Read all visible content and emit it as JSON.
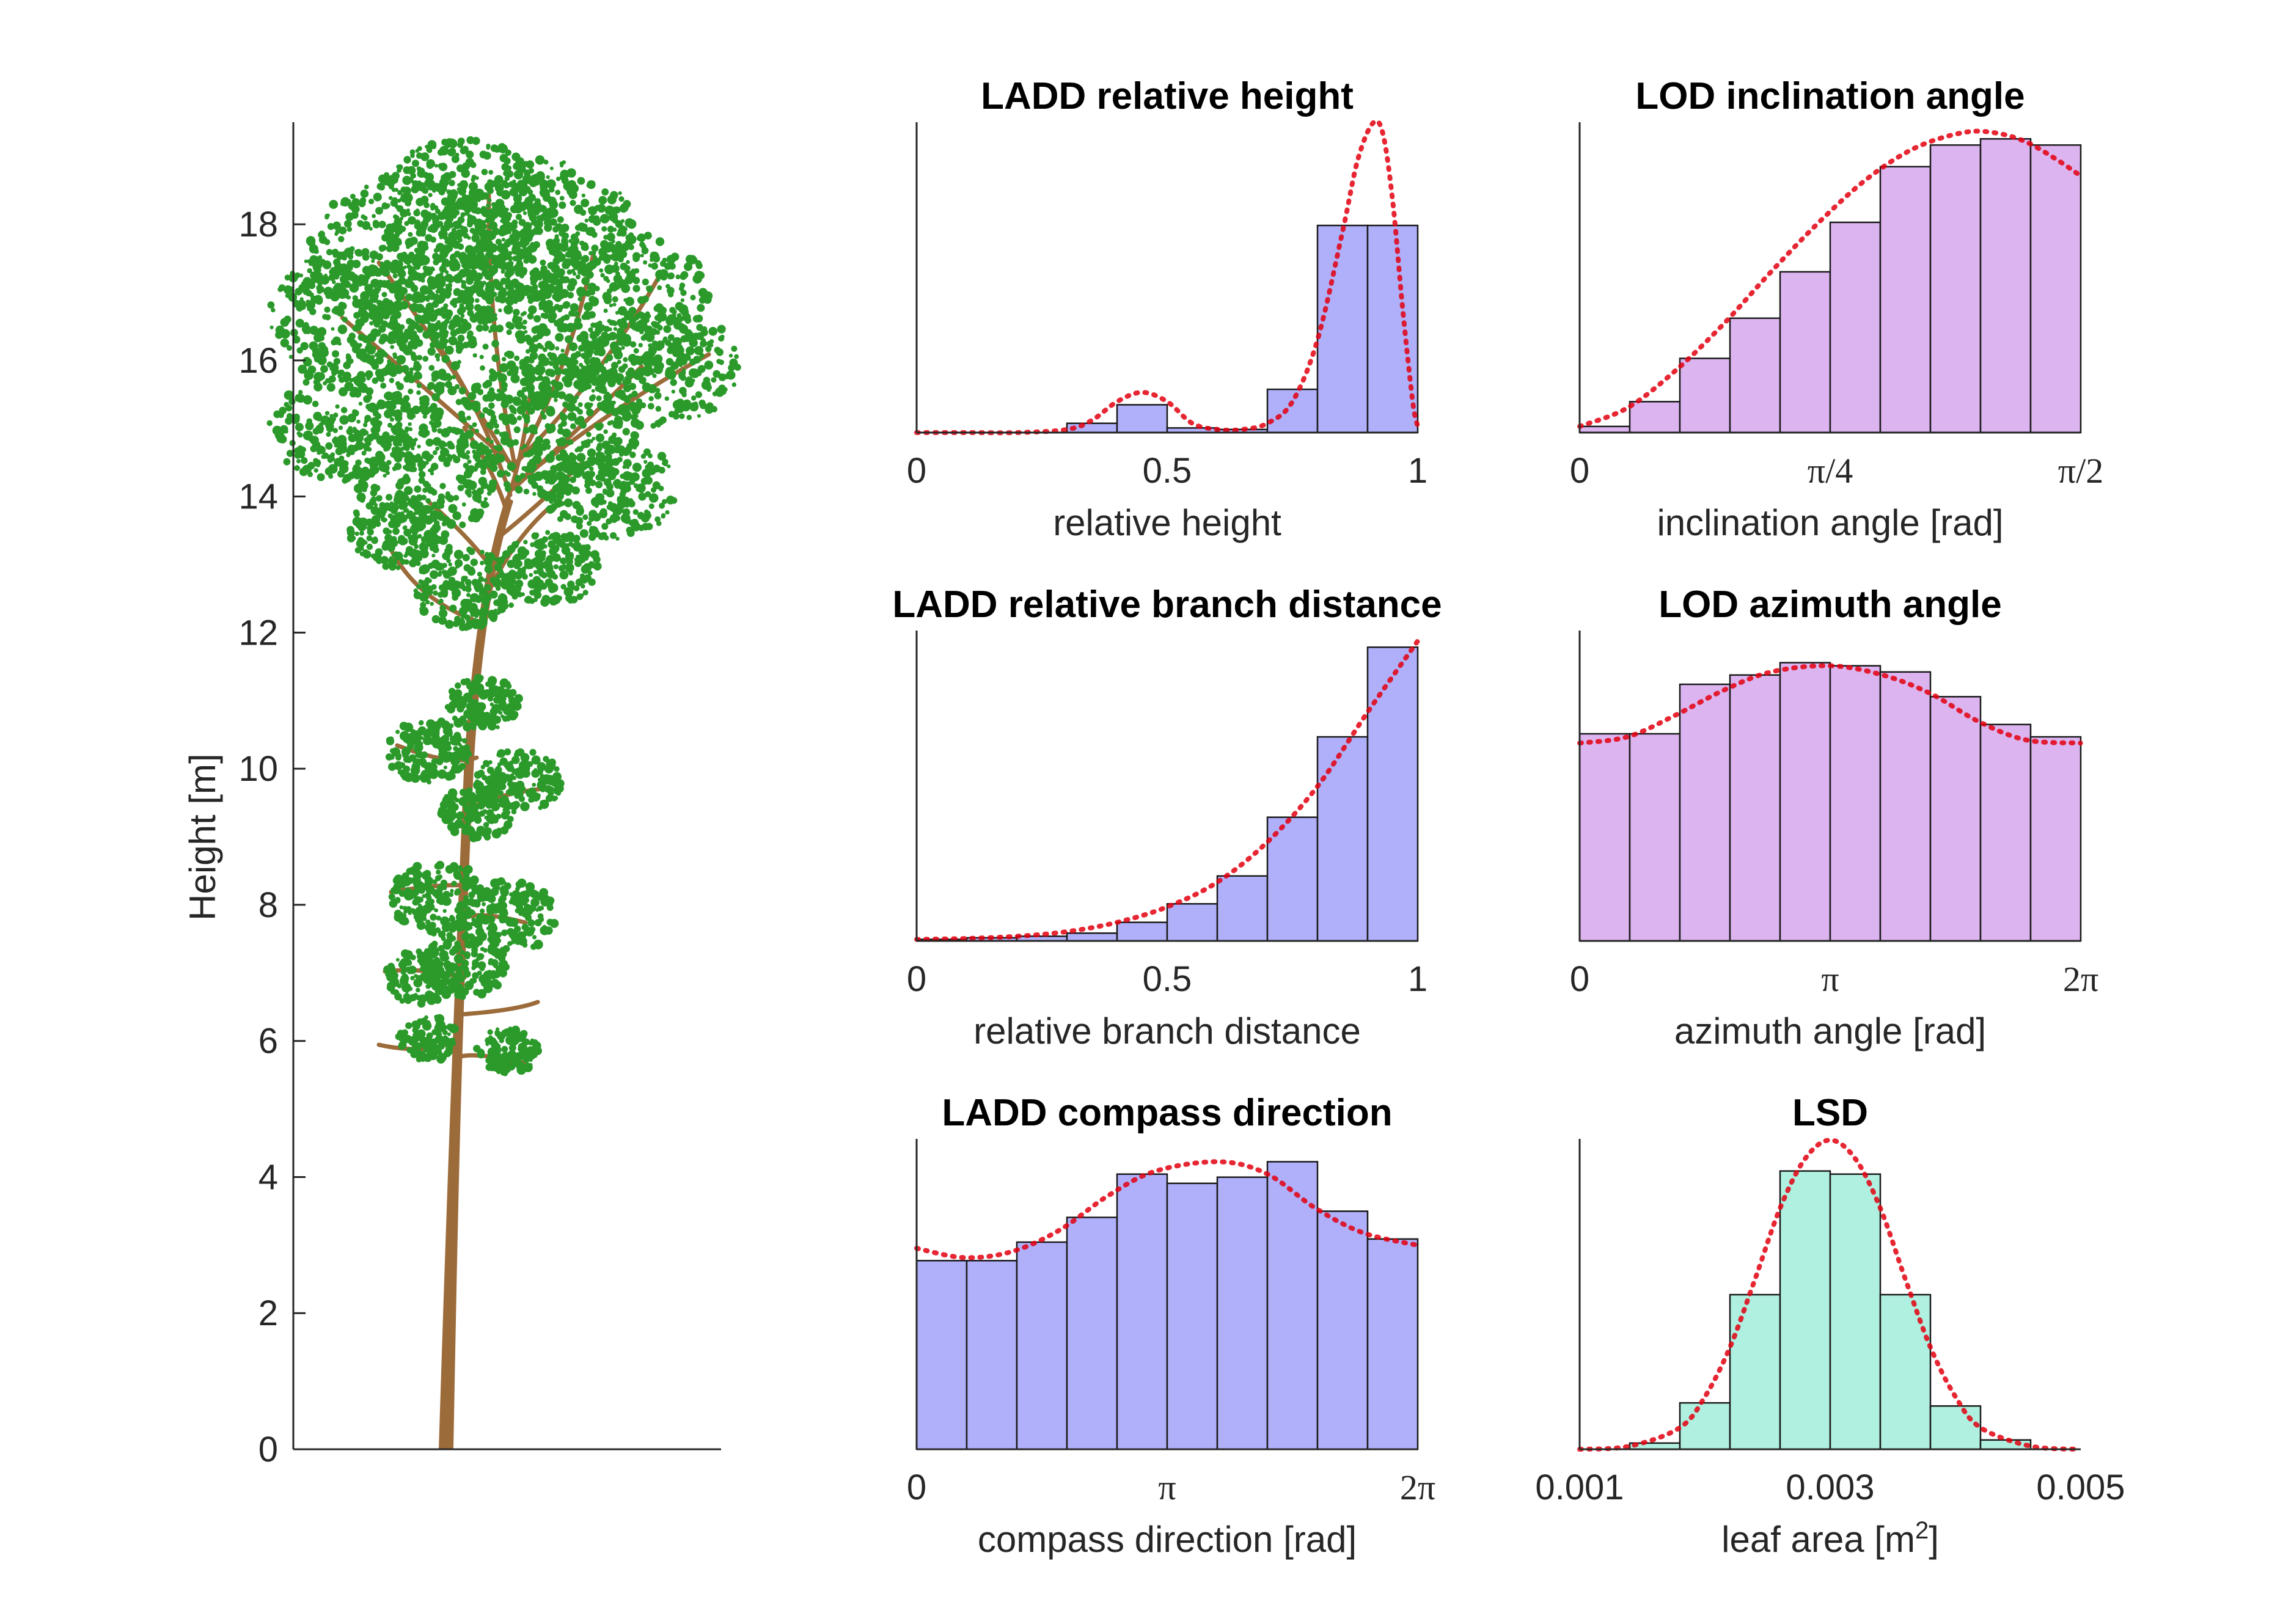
{
  "colors": {
    "ladd_bar": "#b0b0fa",
    "lod_bar": "#dcb4f0",
    "lsd_bar": "#b0f0e0",
    "fit_line": "#e3000f",
    "trunk": "#9c6b3a",
    "foliage": "#2b9a2b"
  },
  "tree": {
    "ylabel": "Height [m]",
    "ylim": [
      0,
      19.5
    ],
    "yticks": [
      0,
      2,
      4,
      6,
      8,
      10,
      12,
      14,
      16,
      18
    ]
  },
  "chart_data": [
    {
      "id": "ladd-height",
      "type": "bar",
      "title": "LADD relative height",
      "xlabel": "relative height",
      "xlim": [
        0,
        1
      ],
      "xticks": [
        {
          "v": 0,
          "label": "0"
        },
        {
          "v": 0.5,
          "label": "0.5"
        },
        {
          "v": 1,
          "label": "1"
        }
      ],
      "ylim": [
        0,
        1
      ],
      "bin_edges": [
        0,
        0.1,
        0.2,
        0.3,
        0.4,
        0.5,
        0.6,
        0.7,
        0.8,
        0.9,
        1.0
      ],
      "values": [
        0,
        0,
        0,
        0.03,
        0.09,
        0.015,
        0.01,
        0.14,
        0.67,
        0.67
      ],
      "fit_x": [
        0,
        0.1,
        0.2,
        0.3,
        0.35,
        0.4,
        0.45,
        0.5,
        0.55,
        0.6,
        0.65,
        0.7,
        0.75,
        0.8,
        0.85,
        0.88,
        0.91,
        0.93,
        0.95,
        0.97,
        0.99,
        1.0
      ],
      "fit_y": [
        0,
        0,
        0,
        0.01,
        0.04,
        0.1,
        0.13,
        0.1,
        0.03,
        0.01,
        0.01,
        0.03,
        0.1,
        0.3,
        0.65,
        0.88,
        1.0,
        0.97,
        0.75,
        0.4,
        0.1,
        0.02
      ]
    },
    {
      "id": "lod-inclination",
      "type": "bar",
      "title": "LOD inclination angle",
      "xlabel": "inclination angle [rad]",
      "xlim": [
        0,
        1.5708
      ],
      "xticks": [
        {
          "v": 0,
          "label": "0"
        },
        {
          "v": 0.7854,
          "label": "π/4"
        },
        {
          "v": 1.5708,
          "label": "π/2"
        }
      ],
      "ylim": [
        0,
        1
      ],
      "bin_edges": [
        0,
        0.15708,
        0.31416,
        0.47124,
        0.62832,
        0.7854,
        0.94248,
        1.09956,
        1.25664,
        1.41372,
        1.5708
      ],
      "values": [
        0.02,
        0.1,
        0.24,
        0.37,
        0.52,
        0.68,
        0.86,
        0.93,
        0.95,
        0.93
      ],
      "fit_x": [
        0,
        0.15,
        0.3,
        0.45,
        0.6,
        0.75,
        0.9,
        1.05,
        1.2,
        1.3,
        1.4,
        1.5,
        1.5708
      ],
      "fit_y": [
        0.02,
        0.08,
        0.2,
        0.35,
        0.52,
        0.68,
        0.82,
        0.92,
        0.97,
        0.97,
        0.94,
        0.88,
        0.83
      ]
    },
    {
      "id": "ladd-branch",
      "type": "bar",
      "title": "LADD relative branch distance",
      "xlabel": "relative branch distance",
      "xlim": [
        0,
        1
      ],
      "xticks": [
        {
          "v": 0,
          "label": "0"
        },
        {
          "v": 0.5,
          "label": "0.5"
        },
        {
          "v": 1,
          "label": "1"
        }
      ],
      "ylim": [
        0,
        1
      ],
      "bin_edges": [
        0,
        0.1,
        0.2,
        0.3,
        0.4,
        0.5,
        0.6,
        0.7,
        0.8,
        0.9,
        1.0
      ],
      "values": [
        0.005,
        0.01,
        0.015,
        0.025,
        0.06,
        0.12,
        0.21,
        0.4,
        0.66,
        0.95
      ],
      "fit_x": [
        0,
        0.1,
        0.2,
        0.3,
        0.4,
        0.5,
        0.6,
        0.7,
        0.8,
        0.9,
        1.0
      ],
      "fit_y": [
        0.005,
        0.008,
        0.015,
        0.03,
        0.06,
        0.11,
        0.19,
        0.32,
        0.5,
        0.74,
        0.97
      ]
    },
    {
      "id": "lod-azimuth",
      "type": "bar",
      "title": "LOD azimuth angle",
      "xlabel": "azimuth angle [rad]",
      "xlim": [
        0,
        6.28319
      ],
      "xticks": [
        {
          "v": 0,
          "label": "0"
        },
        {
          "v": 3.14159,
          "label": "π"
        },
        {
          "v": 6.28319,
          "label": "2π"
        }
      ],
      "ylim": [
        0,
        1
      ],
      "bin_edges": [
        0,
        0.62832,
        1.25664,
        1.88496,
        2.51327,
        3.14159,
        3.76991,
        4.39823,
        5.02655,
        5.65487,
        6.28319
      ],
      "values": [
        0.67,
        0.67,
        0.83,
        0.86,
        0.9,
        0.89,
        0.87,
        0.79,
        0.7,
        0.66
      ],
      "fit_x": [
        0,
        0.6,
        1.2,
        1.8,
        2.4,
        3.14,
        3.8,
        4.4,
        5.0,
        5.6,
        6.28
      ],
      "fit_y": [
        0.64,
        0.66,
        0.73,
        0.81,
        0.87,
        0.89,
        0.86,
        0.8,
        0.71,
        0.65,
        0.64
      ]
    },
    {
      "id": "ladd-compass",
      "type": "bar",
      "title": "LADD compass direction",
      "xlabel": "compass direction [rad]",
      "xlim": [
        0,
        6.28319
      ],
      "xticks": [
        {
          "v": 0,
          "label": "0"
        },
        {
          "v": 3.14159,
          "label": "π"
        },
        {
          "v": 6.28319,
          "label": "2π"
        }
      ],
      "ylim": [
        0,
        1
      ],
      "bin_edges": [
        0,
        0.62832,
        1.25664,
        1.88496,
        2.51327,
        3.14159,
        3.76991,
        4.39823,
        5.02655,
        5.65487,
        6.28319
      ],
      "values": [
        0.61,
        0.61,
        0.67,
        0.75,
        0.89,
        0.86,
        0.88,
        0.93,
        0.77,
        0.68
      ],
      "fit_x": [
        0,
        0.6,
        1.2,
        1.8,
        2.4,
        3.0,
        3.8,
        4.4,
        5.0,
        5.6,
        6.28
      ],
      "fit_y": [
        0.65,
        0.62,
        0.64,
        0.71,
        0.82,
        0.9,
        0.93,
        0.89,
        0.78,
        0.7,
        0.66
      ]
    },
    {
      "id": "lsd",
      "type": "bar",
      "title": "LSD",
      "xlabel": "leaf area [m",
      "xlabel_sup": "2",
      "xlabel_end": "]",
      "xlim": [
        0.001,
        0.005
      ],
      "xticks": [
        {
          "v": 0.001,
          "label": "0.001"
        },
        {
          "v": 0.003,
          "label": "0.003"
        },
        {
          "v": 0.005,
          "label": "0.005"
        }
      ],
      "ylim": [
        0,
        1
      ],
      "bin_edges": [
        0.001,
        0.0014,
        0.0018,
        0.0022,
        0.0026,
        0.003,
        0.0034,
        0.0038,
        0.0042,
        0.0046,
        0.005
      ],
      "values": [
        0,
        0.02,
        0.15,
        0.5,
        0.9,
        0.89,
        0.5,
        0.14,
        0.03,
        0
      ],
      "fit_x": [
        0.001,
        0.0014,
        0.0018,
        0.002,
        0.0022,
        0.0024,
        0.0026,
        0.0028,
        0.003,
        0.0032,
        0.0034,
        0.0036,
        0.0038,
        0.004,
        0.0042,
        0.0046,
        0.005
      ],
      "fit_y": [
        0,
        0.01,
        0.07,
        0.17,
        0.33,
        0.55,
        0.78,
        0.94,
        1.0,
        0.94,
        0.78,
        0.55,
        0.33,
        0.17,
        0.07,
        0.01,
        0
      ]
    }
  ]
}
